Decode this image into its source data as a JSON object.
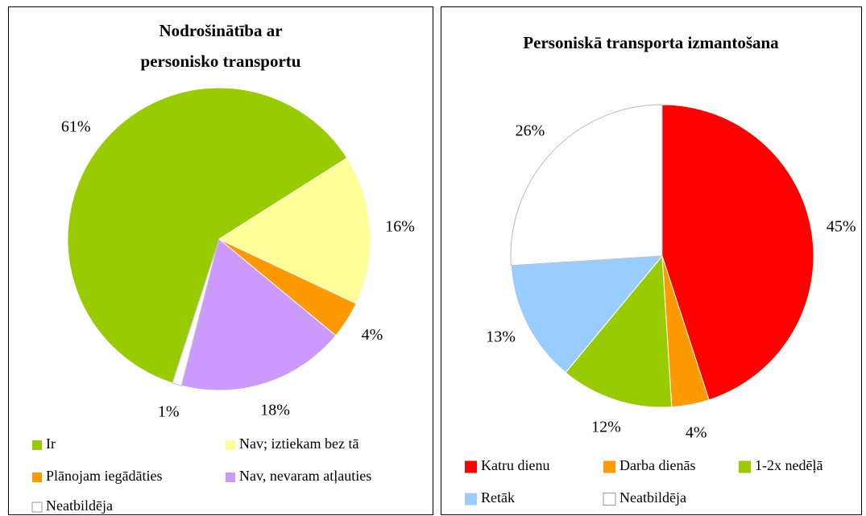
{
  "chart_data": [
    {
      "type": "pie",
      "title": [
        "Nodrošinātība ar",
        "personisko transportu"
      ],
      "categories": [
        "Ir",
        "Nav; iztiekam bez tā",
        "Plānojam iegādāties",
        "Nav, nevaram atļauties",
        "Neatbildēja"
      ],
      "values": [
        61,
        16,
        4,
        18,
        1
      ],
      "value_labels": [
        "61%",
        "16%",
        "4%",
        "18%",
        "1%"
      ],
      "colors": [
        "#99cc00",
        "#ffff99",
        "#ff9900",
        "#cc99ff",
        "#ffffff"
      ]
    },
    {
      "type": "pie",
      "title": [
        "Personiskā transporta izmantošana"
      ],
      "categories": [
        "Katru dienu",
        "Darba dienās",
        "1-2x nedēļā",
        "Retāk",
        "Neatbildēja"
      ],
      "values": [
        45,
        4,
        12,
        13,
        26
      ],
      "value_labels": [
        "45%",
        "4%",
        "12%",
        "13%",
        "26%"
      ],
      "colors": [
        "#ff0000",
        "#ff9900",
        "#99cc00",
        "#99ccff",
        "#ffffff"
      ]
    }
  ]
}
